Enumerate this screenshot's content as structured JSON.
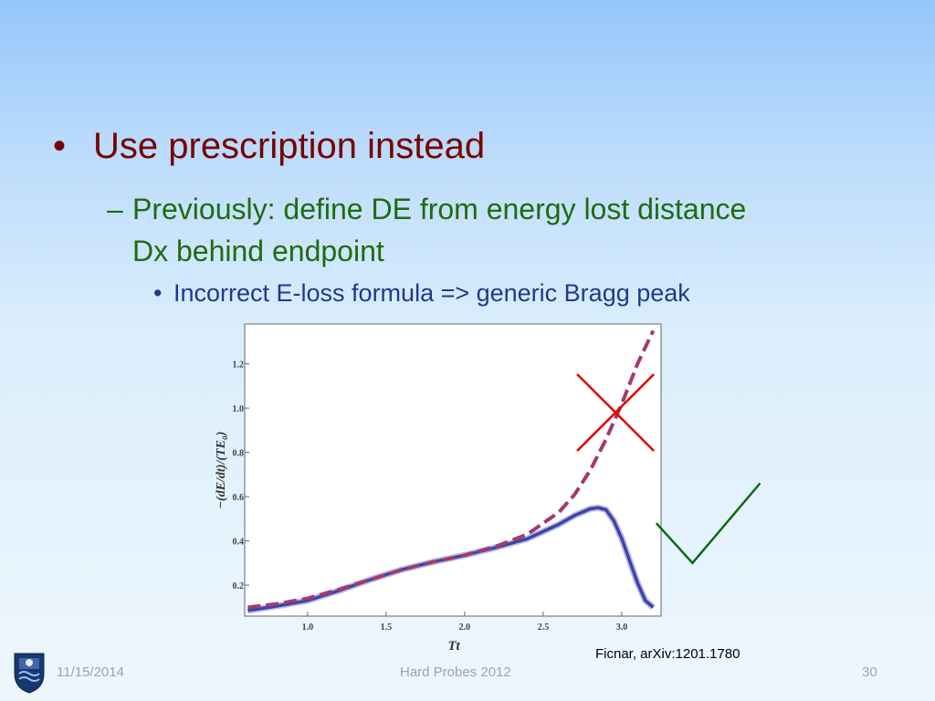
{
  "slide": {
    "bullet1": {
      "marker": "•",
      "text": "Use prescription instead"
    },
    "bullet2": {
      "marker": "–",
      "text": "Previously: define DE from energy lost distance Dx behind endpoint"
    },
    "bullet3": {
      "marker": "•",
      "text": "Incorrect E-loss formula => generic Bragg peak"
    }
  },
  "citation": "Ficnar, arXiv:1201.1780",
  "footer": {
    "date": "11/15/2014",
    "title": "Hard Probes 2012",
    "page": "30"
  },
  "chart_data": {
    "type": "line",
    "title": "",
    "xlabel": "Tt",
    "ylabel": "−(dE/dt)/(TE₀)",
    "xlim": [
      0.6,
      3.25
    ],
    "ylim": [
      0.06,
      1.38
    ],
    "x_ticks": [
      1.0,
      1.5,
      2.0,
      2.5,
      3.0
    ],
    "y_ticks": [
      0.2,
      0.4,
      0.6,
      0.8,
      1.0,
      1.2
    ],
    "x_tick_labels": [
      "1.0",
      "1.5",
      "2.0",
      "2.5",
      "3.0"
    ],
    "y_tick_labels": [
      "0.2",
      "0.4",
      "0.6",
      "0.8",
      "1.0",
      "1.2"
    ],
    "grid": false,
    "series": [
      {
        "style": "solid",
        "color": "#3d44a8",
        "x": [
          0.62,
          0.8,
          1.0,
          1.2,
          1.4,
          1.6,
          1.8,
          2.0,
          2.2,
          2.4,
          2.6,
          2.7,
          2.8,
          2.85,
          2.9,
          2.95,
          3.0,
          3.05,
          3.1,
          3.15,
          3.2
        ],
        "y": [
          0.085,
          0.105,
          0.13,
          0.175,
          0.225,
          0.27,
          0.305,
          0.335,
          0.37,
          0.41,
          0.475,
          0.515,
          0.545,
          0.55,
          0.54,
          0.49,
          0.41,
          0.31,
          0.21,
          0.13,
          0.1
        ]
      },
      {
        "style": "dashed",
        "color": "#a33a6e",
        "x": [
          0.62,
          0.8,
          1.0,
          1.2,
          1.4,
          1.6,
          1.8,
          2.0,
          2.2,
          2.4,
          2.6,
          2.7,
          2.8,
          2.9,
          3.0,
          3.1,
          3.2
        ],
        "y": [
          0.1,
          0.115,
          0.14,
          0.18,
          0.225,
          0.27,
          0.305,
          0.335,
          0.375,
          0.43,
          0.53,
          0.61,
          0.72,
          0.86,
          1.02,
          1.2,
          1.35
        ]
      }
    ],
    "annotations": [
      {
        "type": "cross",
        "color": "#e00000",
        "x": 2.96,
        "y": 0.98
      },
      {
        "type": "check",
        "color": "#0a6b12",
        "points": [
          [
            3.22,
            0.48
          ],
          [
            3.45,
            0.3
          ],
          [
            3.88,
            0.66
          ]
        ]
      }
    ]
  }
}
